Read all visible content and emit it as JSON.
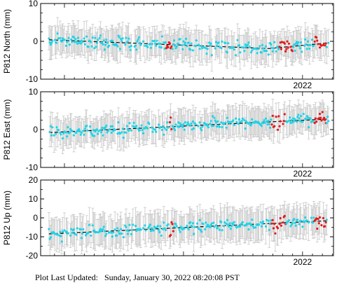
{
  "footer": {
    "prefix": "Plot Last Updated:",
    "timestamp": "Sunday, January 30, 2022 08:20:08 PST"
  },
  "colors": {
    "normal_points": "#22d3e6",
    "recent_points": "#e41a1c",
    "error_bars": "#c8c8c8",
    "trend_line": "#000000",
    "axes": "#000000"
  },
  "chart_data": [
    {
      "type": "scatter",
      "ylabel": "P812 North (mm)",
      "ylim": [
        -10,
        10
      ],
      "yticks": [
        -10,
        0,
        10
      ],
      "x_tick_labels": [
        "2022"
      ],
      "series_summary": {
        "x_start": 2019.87,
        "x_end": 2022.22,
        "trend_start": 0.4,
        "trend_end": -0.4,
        "trend_min": -1.9,
        "trend_min_at": 2021.72,
        "typical_error_mm": 3.5
      },
      "red_cluster_ranges": [
        [
          2020.85,
          2020.9
        ],
        [
          2021.8,
          2021.92
        ],
        [
          2022.1,
          2022.2
        ]
      ]
    },
    {
      "type": "scatter",
      "ylabel": "P812 East (mm)",
      "ylim": [
        -10,
        10
      ],
      "yticks": [
        -10,
        0,
        10
      ],
      "x_tick_labels": [
        "2022"
      ],
      "series_summary": {
        "x_start": 2019.87,
        "x_end": 2022.22,
        "trend_start": -0.8,
        "trend_end": 2.8,
        "typical_error_mm": 3.5
      },
      "red_cluster_ranges": [
        [
          2020.88,
          2020.9
        ],
        [
          2021.74,
          2021.86
        ],
        [
          2022.1,
          2022.2
        ]
      ]
    },
    {
      "type": "scatter",
      "ylabel": "P812 Up (mm)",
      "ylim": [
        -20,
        20
      ],
      "yticks": [
        -20,
        -10,
        0,
        10,
        20
      ],
      "x_tick_labels": [
        "2022"
      ],
      "series_summary": {
        "x_start": 2019.87,
        "x_end": 2022.22,
        "trend_start": -8.5,
        "trend_end": -1.5,
        "typical_error_mm": 7.5
      },
      "red_cluster_ranges": [
        [
          2020.88,
          2020.92
        ],
        [
          2021.74,
          2021.86
        ],
        [
          2022.1,
          2022.2
        ]
      ]
    }
  ]
}
